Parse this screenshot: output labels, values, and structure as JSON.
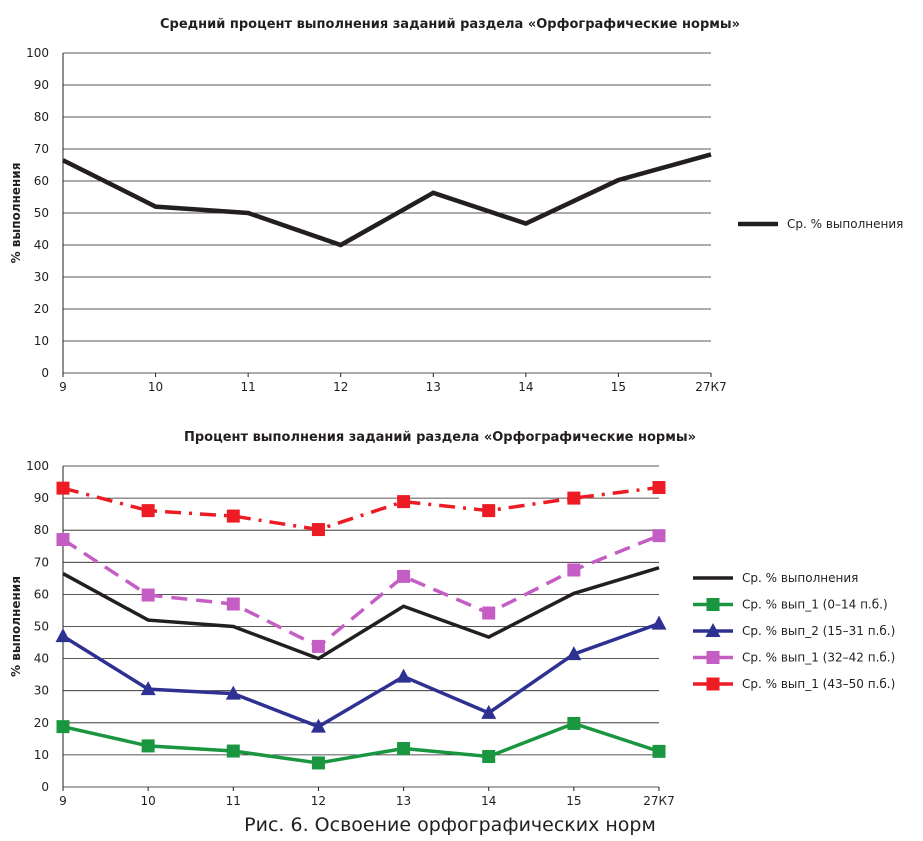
{
  "caption": "Рис. 6. Освоение орфографических норм",
  "chart_data": [
    {
      "type": "line",
      "title": "Средний процент выполнения заданий раздела «Орфографические нормы»",
      "xlabel": "",
      "ylabel": "% выполнения",
      "ylim": [
        0,
        100
      ],
      "yticks": [
        "0",
        "10",
        "20",
        "30",
        "40",
        "50",
        "60",
        "70",
        "80",
        "90",
        "100"
      ],
      "categories": [
        "9",
        "10",
        "11",
        "12",
        "13",
        "14",
        "15",
        "27К7"
      ],
      "grid": true,
      "legend_position": "right",
      "series": [
        {
          "name": "Ср. % выполнения",
          "color": "#231f20",
          "marker": "none",
          "dash": "solid",
          "values": [
            66.5,
            52,
            50,
            40,
            56.3,
            46.7,
            60.3,
            68.3
          ]
        }
      ]
    },
    {
      "type": "line",
      "title": "Процент выполнения заданий раздела «Орфографические нормы»",
      "xlabel": "",
      "ylabel": "% выполнения",
      "ylim": [
        0,
        100
      ],
      "yticks": [
        "0",
        "10",
        "20",
        "30",
        "40",
        "50",
        "60",
        "70",
        "80",
        "90",
        "100"
      ],
      "categories": [
        "9",
        "10",
        "11",
        "12",
        "13",
        "14",
        "15",
        "27К7"
      ],
      "grid": true,
      "legend_position": "right",
      "series": [
        {
          "name": "Ср. % выполнения",
          "color": "#231f20",
          "marker": "none",
          "dash": "solid",
          "values": [
            66.5,
            52,
            50,
            40,
            56.3,
            46.7,
            60.3,
            68.3
          ]
        },
        {
          "name": "Ср. % вып_1 (0–14 п.б.)",
          "color": "#1a9641",
          "marker": "square",
          "dash": "solid",
          "values": [
            18.8,
            12.8,
            11.2,
            7.5,
            12,
            9.5,
            19.8,
            11.1
          ]
        },
        {
          "name": "Ср. % вып_2 (15–31 п.б.)",
          "color": "#2e3192",
          "marker": "triangle",
          "dash": "solid",
          "values": [
            47,
            30.5,
            29.1,
            18.8,
            34.4,
            23.1,
            41.4,
            50.9
          ]
        },
        {
          "name": "Ср. % вып_1 (32–42 п.б.)",
          "color": "#c45ec4",
          "marker": "square",
          "dash": "dash",
          "values": [
            77.1,
            59.8,
            57,
            43.8,
            65.6,
            54.2,
            67.6,
            78.3
          ]
        },
        {
          "name": "Ср. % вып_1 (43–50 п.б.)",
          "color": "#ed1c24",
          "marker": "square",
          "dash": "dashdot",
          "values": [
            93.1,
            86.1,
            84.4,
            80.2,
            88.9,
            86.1,
            90,
            93.3
          ]
        }
      ]
    }
  ]
}
